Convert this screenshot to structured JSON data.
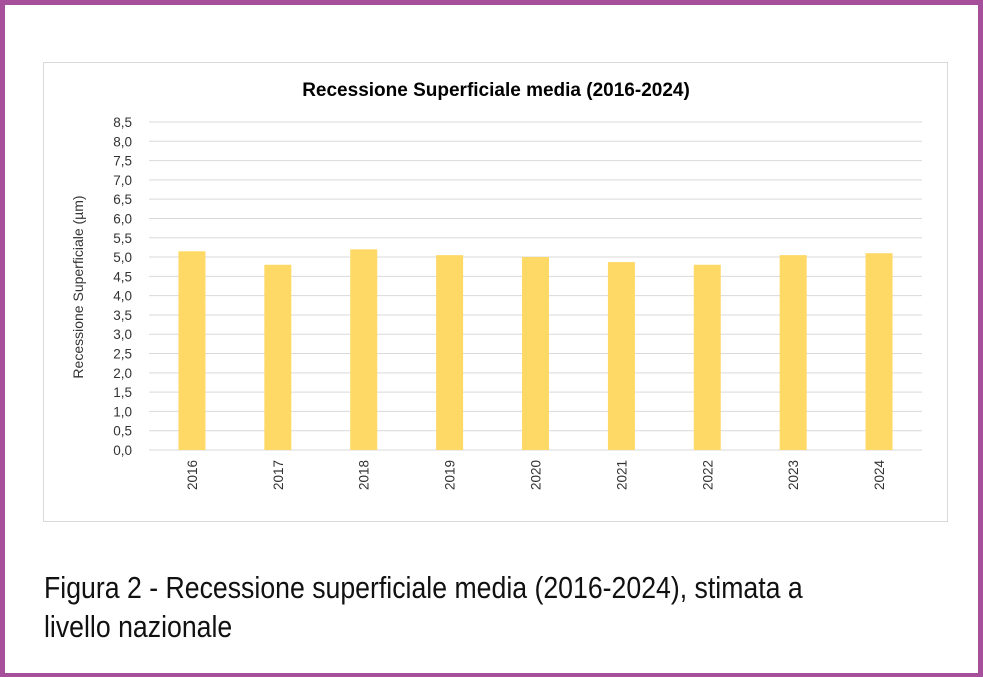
{
  "chart_data": {
    "type": "bar",
    "title": "Recessione Superficiale media (2016-2024)",
    "xlabel": "",
    "ylabel": "Recessione Superficiale (µm)",
    "categories": [
      "2016",
      "2017",
      "2018",
      "2019",
      "2020",
      "2021",
      "2022",
      "2023",
      "2024"
    ],
    "values": [
      5.15,
      4.8,
      5.2,
      5.05,
      5.0,
      4.87,
      4.8,
      5.05,
      5.1
    ],
    "ylim": [
      0,
      8.5
    ],
    "yticks": [
      "0,0",
      "0,5",
      "1,0",
      "1,5",
      "2,0",
      "2,5",
      "3,0",
      "3,5",
      "4,0",
      "4,5",
      "5,0",
      "5,5",
      "6,0",
      "6,5",
      "7,0",
      "7,5",
      "8,0",
      "8,5"
    ],
    "grid": true,
    "legend": "none",
    "bar_color": "#ffd966",
    "grid_color": "#d9d9d9"
  },
  "caption": {
    "line1": "Figura 2 - Recessione superficiale media (2016-2024), stimata a",
    "line2": "livello nazionale"
  },
  "colors": {
    "frame_border": "#a64f9a"
  }
}
